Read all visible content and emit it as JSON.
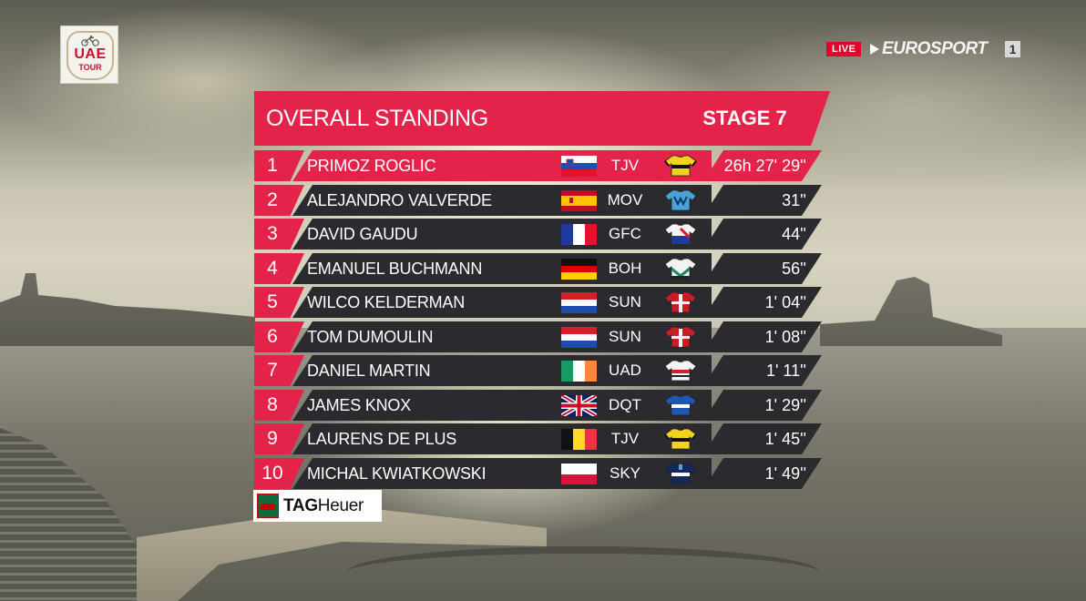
{
  "broadcast": {
    "event_logo_line1": "UAE",
    "event_logo_line2": "TOUR",
    "live_label": "LIVE",
    "channel_name": "EUROSPORT",
    "channel_number": "1"
  },
  "header": {
    "title": "OVERALL STANDING",
    "stage": "STAGE 7"
  },
  "standings": [
    {
      "pos": "1",
      "name": "PRIMOZ ROGLIC",
      "flag": "slovenia-flag",
      "team": "TJV",
      "jersey": "yellow-black-jersey",
      "time": "26h 27' 29''",
      "leader": true
    },
    {
      "pos": "2",
      "name": "ALEJANDRO VALVERDE",
      "flag": "spain-flag",
      "team": "MOV",
      "jersey": "blue-movistar-jersey",
      "time": "31''"
    },
    {
      "pos": "3",
      "name": "DAVID GAUDU",
      "flag": "france-flag",
      "team": "GFC",
      "jersey": "white-blue-red-jersey",
      "time": "44''"
    },
    {
      "pos": "4",
      "name": "EMANUEL BUCHMANN",
      "flag": "germany-flag",
      "team": "BOH",
      "jersey": "white-green-jersey",
      "time": "56''"
    },
    {
      "pos": "5",
      "name": "WILCO KELDERMAN",
      "flag": "netherlands-flag",
      "team": "SUN",
      "jersey": "red-white-jersey",
      "time": "1' 04''"
    },
    {
      "pos": "6",
      "name": "TOM DUMOULIN",
      "flag": "netherlands-flag",
      "team": "SUN",
      "jersey": "red-white-jersey",
      "time": "1' 08''"
    },
    {
      "pos": "7",
      "name": "DANIEL MARTIN",
      "flag": "ireland-flag",
      "team": "UAD",
      "jersey": "white-red-jersey",
      "time": "1' 11''"
    },
    {
      "pos": "8",
      "name": "JAMES KNOX",
      "flag": "uk-flag",
      "team": "DQT",
      "jersey": "blue-white-jersey",
      "time": "1' 29''"
    },
    {
      "pos": "9",
      "name": "LAURENS DE PLUS",
      "flag": "belgium-flag",
      "team": "TJV",
      "jersey": "yellow-black-jersey",
      "time": "1' 45''"
    },
    {
      "pos": "10",
      "name": "MICHAL KWIATKOWSKI",
      "flag": "poland-flag",
      "team": "SKY",
      "jersey": "navy-white-jersey",
      "time": "1' 49''"
    }
  ],
  "sponsor": {
    "name_bold": "TAG",
    "name_regular": "Heuer"
  },
  "colors": {
    "accent_red": "#e4234b",
    "row_dark": "#2b2b2f"
  }
}
